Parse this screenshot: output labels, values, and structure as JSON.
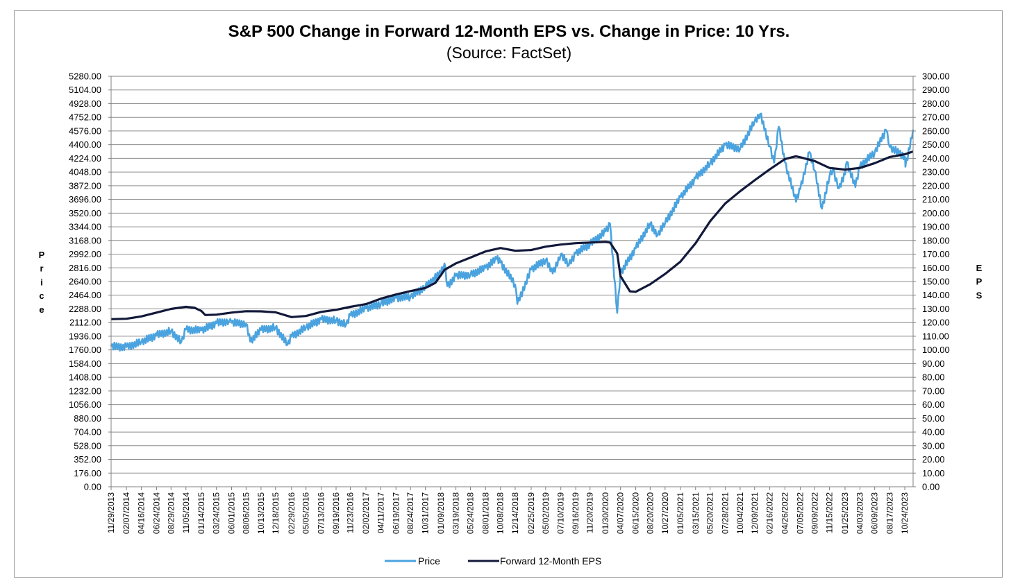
{
  "chart_data": {
    "type": "line",
    "title": "S&P 500 Change in Forward 12-Month EPS vs. Change in Price: 10 Yrs.",
    "subtitle": "(Source: FactSet)",
    "ylabel_left": "Price",
    "ylabel_right": "EPS",
    "ylim_left": [
      0,
      5280
    ],
    "ylim_right": [
      0,
      300
    ],
    "y_ticks_left": [
      "0.00",
      "176.00",
      "352.00",
      "528.00",
      "704.00",
      "880.00",
      "1056.00",
      "1232.00",
      "1408.00",
      "1584.00",
      "1760.00",
      "1936.00",
      "2112.00",
      "2288.00",
      "2464.00",
      "2640.00",
      "2816.00",
      "2992.00",
      "3168.00",
      "3344.00",
      "3520.00",
      "3696.00",
      "3872.00",
      "4048.00",
      "4224.00",
      "4400.00",
      "4576.00",
      "4752.00",
      "4928.00",
      "5104.00",
      "5280.00"
    ],
    "y_ticks_right": [
      "0.00",
      "10.00",
      "20.00",
      "30.00",
      "40.00",
      "50.00",
      "60.00",
      "70.00",
      "80.00",
      "90.00",
      "100.00",
      "110.00",
      "120.00",
      "130.00",
      "140.00",
      "150.00",
      "160.00",
      "170.00",
      "180.00",
      "190.00",
      "200.00",
      "210.00",
      "220.00",
      "230.00",
      "240.00",
      "250.00",
      "260.00",
      "270.00",
      "280.00",
      "290.00",
      "300.00"
    ],
    "x_tick_labels": [
      "11/29/2013",
      "02/07/2014",
      "04/16/2014",
      "06/24/2014",
      "08/29/2014",
      "11/05/2014",
      "01/14/2015",
      "03/24/2015",
      "06/01/2015",
      "08/06/2015",
      "10/13/2015",
      "12/18/2015",
      "02/29/2016",
      "05/05/2016",
      "07/13/2016",
      "09/19/2016",
      "11/23/2016",
      "02/02/2017",
      "04/11/2017",
      "06/19/2017",
      "08/24/2017",
      "10/31/2017",
      "01/09/2018",
      "03/19/2018",
      "05/24/2018",
      "08/01/2018",
      "10/08/2018",
      "12/14/2018",
      "02/25/2019",
      "05/02/2019",
      "07/10/2019",
      "09/16/2019",
      "11/20/2019",
      "01/30/2020",
      "04/07/2020",
      "06/15/2020",
      "08/20/2020",
      "10/27/2020",
      "01/05/2021",
      "03/15/2021",
      "05/20/2021",
      "07/28/2021",
      "10/04/2021",
      "12/09/2021",
      "02/16/2022",
      "04/26/2022",
      "07/05/2022",
      "09/09/2022",
      "11/15/2022",
      "01/25/2023",
      "04/03/2023",
      "06/09/2023",
      "08/17/2023",
      "10/24/2023"
    ],
    "grid": true,
    "legend_position": "bottom",
    "series": [
      {
        "name": "Price",
        "axis": "left",
        "color": "#4aa3df",
        "x": [
          "11/29/2013",
          "02/07/2014",
          "04/16/2014",
          "06/24/2014",
          "08/29/2014",
          "10/15/2014",
          "11/05/2014",
          "01/14/2015",
          "03/24/2015",
          "05/20/2015",
          "06/01/2015",
          "08/06/2015",
          "08/25/2015",
          "10/13/2015",
          "12/18/2015",
          "02/11/2016",
          "02/29/2016",
          "05/05/2016",
          "07/13/2016",
          "09/19/2016",
          "11/04/2016",
          "11/23/2016",
          "02/02/2017",
          "04/11/2017",
          "06/19/2017",
          "08/24/2017",
          "10/31/2017",
          "01/09/2018",
          "01/26/2018",
          "02/08/2018",
          "03/19/2018",
          "05/24/2018",
          "08/01/2018",
          "09/20/2018",
          "10/08/2018",
          "12/14/2018",
          "12/24/2018",
          "02/25/2019",
          "05/02/2019",
          "06/03/2019",
          "07/10/2019",
          "08/15/2019",
          "09/16/2019",
          "11/20/2019",
          "01/30/2020",
          "02/19/2020",
          "03/23/2020",
          "04/07/2020",
          "06/15/2020",
          "08/20/2020",
          "09/23/2020",
          "10/27/2020",
          "01/05/2021",
          "03/15/2021",
          "05/20/2021",
          "07/28/2021",
          "10/04/2021",
          "12/09/2021",
          "01/03/2022",
          "02/16/2022",
          "03/08/2022",
          "03/29/2022",
          "04/26/2022",
          "06/16/2022",
          "07/05/2022",
          "08/16/2022",
          "09/09/2022",
          "10/12/2022",
          "11/15/2022",
          "12/01/2022",
          "12/28/2022",
          "01/25/2023",
          "02/02/2023",
          "03/13/2023",
          "04/03/2023",
          "06/09/2023",
          "07/31/2023",
          "08/17/2023",
          "10/24/2023",
          "10/27/2023",
          "12/01/2023"
        ],
        "values": [
          1806,
          1797,
          1863,
          1950,
          2003,
          1862,
          2023,
          2011,
          2104,
          2130,
          2110,
          2097,
          1868,
          2017,
          2050,
          1829,
          1932,
          2050,
          2152,
          2139,
          2085,
          2204,
          2294,
          2353,
          2431,
          2444,
          2575,
          2751,
          2873,
          2581,
          2712,
          2727,
          2816,
          2930,
          2885,
          2600,
          2351,
          2796,
          2917,
          2744,
          2993,
          2847,
          3005,
          3120,
          3283,
          3386,
          2237,
          2749,
          3066,
          3385,
          3237,
          3390,
          3726,
          3968,
          4159,
          4400,
          4345,
          4700,
          4796,
          4380,
          4170,
          4631,
          4175,
          3666,
          3831,
          4305,
          4067,
          3577,
          3992,
          4080,
          3839,
          4016,
          4179,
          3855,
          4124,
          4299,
          4589,
          4370,
          4247,
          4117,
          4595
        ]
      },
      {
        "name": "Forward 12-Month EPS",
        "axis": "right",
        "color": "#12193a",
        "x": [
          "11/29/2013",
          "02/07/2014",
          "04/16/2014",
          "06/24/2014",
          "08/29/2014",
          "11/05/2014",
          "12/15/2014",
          "01/14/2015",
          "02/01/2015",
          "03/24/2015",
          "06/01/2015",
          "08/06/2015",
          "10/13/2015",
          "12/18/2015",
          "02/29/2016",
          "05/05/2016",
          "07/13/2016",
          "09/19/2016",
          "11/23/2016",
          "02/02/2017",
          "04/11/2017",
          "06/19/2017",
          "08/24/2017",
          "10/31/2017",
          "12/15/2017",
          "01/09/2018",
          "01/26/2018",
          "03/19/2018",
          "05/24/2018",
          "08/01/2018",
          "10/08/2018",
          "12/14/2018",
          "02/25/2019",
          "05/02/2019",
          "07/10/2019",
          "09/16/2019",
          "11/20/2019",
          "01/30/2020",
          "02/19/2020",
          "03/23/2020",
          "04/07/2020",
          "05/20/2020",
          "06/15/2020",
          "08/20/2020",
          "10/27/2020",
          "01/05/2021",
          "03/15/2021",
          "05/20/2021",
          "07/28/2021",
          "10/04/2021",
          "12/09/2021",
          "02/16/2022",
          "04/26/2022",
          "06/15/2022",
          "07/05/2022",
          "09/09/2022",
          "11/15/2022",
          "01/25/2023",
          "04/03/2023",
          "06/09/2023",
          "08/17/2023",
          "10/24/2023",
          "12/01/2023"
        ],
        "values": [
          122.5,
          122.8,
          124.5,
          127.3,
          130,
          131.5,
          130.8,
          128.5,
          125.5,
          125.8,
          127.3,
          128.3,
          128.2,
          127.5,
          124,
          124.8,
          127.8,
          129.3,
          131.5,
          133.5,
          137.5,
          140.5,
          143,
          145.3,
          149,
          154.5,
          158.5,
          163.3,
          167.5,
          172,
          174.5,
          172.5,
          173,
          175.5,
          177,
          178,
          178.5,
          179,
          178.5,
          170.5,
          154,
          142.8,
          142.5,
          148,
          155.5,
          164.5,
          178,
          194,
          207,
          216,
          224,
          232,
          239.5,
          241.5,
          240.8,
          238,
          233,
          231.8,
          233,
          236.5,
          241,
          243,
          245
        ]
      }
    ]
  }
}
